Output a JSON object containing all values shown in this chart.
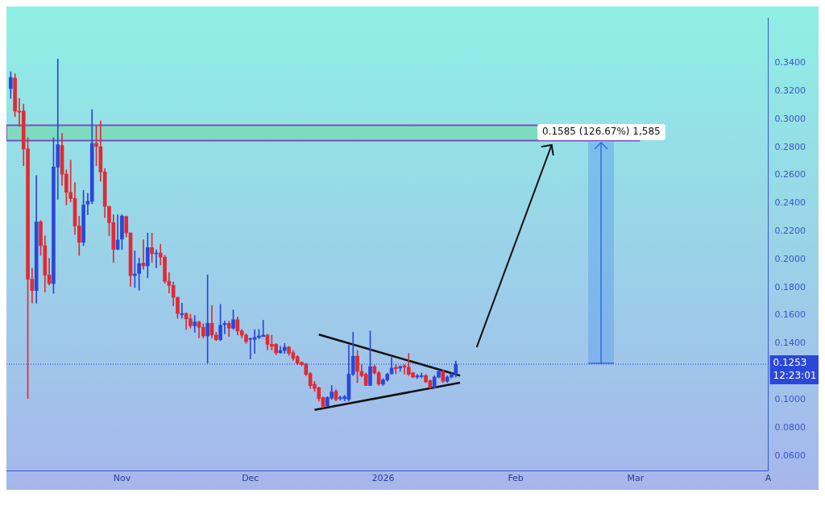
{
  "chart_data": {
    "type": "candlestick",
    "x": [
      "2025-10-06",
      "2025-10-07",
      "2025-10-08",
      "2025-10-09",
      "2025-10-10",
      "2025-10-11",
      "2025-10-12",
      "2025-10-13",
      "2025-10-14",
      "2025-10-15",
      "2025-10-16",
      "2025-10-17",
      "2025-10-18",
      "2025-10-19",
      "2025-10-20",
      "2025-10-21",
      "2025-10-22",
      "2025-10-23",
      "2025-10-24",
      "2025-10-25",
      "2025-10-26",
      "2025-10-27",
      "2025-10-28",
      "2025-10-29",
      "2025-10-30",
      "2025-10-31",
      "2025-11-01",
      "2025-11-02",
      "2025-11-03",
      "2025-11-04",
      "2025-11-05",
      "2025-11-06",
      "2025-11-07",
      "2025-11-08",
      "2025-11-09",
      "2025-11-10",
      "2025-11-11",
      "2025-11-12",
      "2025-11-13",
      "2025-11-14",
      "2025-11-15",
      "2025-11-16",
      "2025-11-17",
      "2025-11-18",
      "2025-11-19",
      "2025-11-20",
      "2025-11-21",
      "2025-11-22",
      "2025-11-23",
      "2025-11-24",
      "2025-11-25",
      "2025-11-26",
      "2025-11-27",
      "2025-11-28",
      "2025-11-29",
      "2025-11-30",
      "2025-12-01",
      "2025-12-02",
      "2025-12-03",
      "2025-12-04",
      "2025-12-05",
      "2025-12-06",
      "2025-12-07",
      "2025-12-08",
      "2025-12-09",
      "2025-12-10",
      "2025-12-11",
      "2025-12-12",
      "2025-12-13",
      "2025-12-14",
      "2025-12-15",
      "2025-12-16",
      "2025-12-17",
      "2025-12-18",
      "2025-12-19",
      "2025-12-20",
      "2025-12-21",
      "2025-12-22",
      "2025-12-23",
      "2025-12-24",
      "2025-12-25",
      "2025-12-26",
      "2025-12-27",
      "2025-12-28",
      "2025-12-29",
      "2025-12-30",
      "2025-12-31",
      "2026-01-01",
      "2026-01-02",
      "2026-01-03",
      "2026-01-04",
      "2026-01-05",
      "2026-01-06",
      "2026-01-07",
      "2026-01-08",
      "2026-01-09",
      "2026-01-10",
      "2026-01-11",
      "2026-01-12",
      "2026-01-13",
      "2026-01-14",
      "2026-01-15",
      "2026-01-16",
      "2026-01-17",
      "2026-01-18"
    ],
    "ohlc": [
      [
        0.3218,
        0.3338,
        0.3148,
        0.3298
      ],
      [
        0.3292,
        0.3324,
        0.3018,
        0.3058
      ],
      [
        0.3058,
        0.3148,
        0.2948,
        0.305
      ],
      [
        0.3058,
        0.3108,
        0.2668,
        0.2788
      ],
      [
        0.2788,
        0.2868,
        0.1008,
        0.1858
      ],
      [
        0.1858,
        0.1938,
        0.1688,
        0.1778
      ],
      [
        0.1778,
        0.2598,
        0.1688,
        0.2268
      ],
      [
        0.2268,
        0.2278,
        0.2028,
        0.2098
      ],
      [
        0.2098,
        0.2168,
        0.1768,
        0.1888
      ],
      [
        0.1888,
        0.2008,
        0.1818,
        0.1828
      ],
      [
        0.1828,
        0.2868,
        0.1758,
        0.2658
      ],
      [
        0.2658,
        0.3428,
        0.2428,
        0.2818
      ],
      [
        0.2812,
        0.2898,
        0.2528,
        0.2608
      ],
      [
        0.2608,
        0.2638,
        0.2388,
        0.2478
      ],
      [
        0.2478,
        0.2708,
        0.2408,
        0.2434
      ],
      [
        0.2434,
        0.2548,
        0.2178,
        0.2238
      ],
      [
        0.2238,
        0.2308,
        0.2028,
        0.2122
      ],
      [
        0.2122,
        0.2492,
        0.2098,
        0.2388
      ],
      [
        0.2394,
        0.2472,
        0.2318,
        0.2414
      ],
      [
        0.2414,
        0.3068,
        0.2398,
        0.2828
      ],
      [
        0.2828,
        0.2958,
        0.2668,
        0.2804
      ],
      [
        0.2804,
        0.2988,
        0.2558,
        0.2624
      ],
      [
        0.2624,
        0.2648,
        0.2298,
        0.2378
      ],
      [
        0.2378,
        0.2378,
        0.2168,
        0.2262
      ],
      [
        0.2262,
        0.2318,
        0.1978,
        0.2072
      ],
      [
        0.2072,
        0.2318,
        0.2068,
        0.2138
      ],
      [
        0.2145,
        0.2319,
        0.207,
        0.2309
      ],
      [
        0.2305,
        0.231,
        0.216,
        0.2189
      ],
      [
        0.2189,
        0.2189,
        0.1808,
        0.1884
      ],
      [
        0.1884,
        0.206,
        0.18,
        0.1896
      ],
      [
        0.19,
        0.201,
        0.178,
        0.197
      ],
      [
        0.1974,
        0.214,
        0.193,
        0.1954
      ],
      [
        0.1954,
        0.2188,
        0.1868,
        0.2084
      ],
      [
        0.2084,
        0.2188,
        0.198,
        0.204
      ],
      [
        0.204,
        0.2068,
        0.194,
        0.2045
      ],
      [
        0.2045,
        0.2108,
        0.196,
        0.2016
      ],
      [
        0.2016,
        0.203,
        0.183,
        0.1844
      ],
      [
        0.1844,
        0.1908,
        0.176,
        0.1814
      ],
      [
        0.1814,
        0.1838,
        0.1668,
        0.173
      ],
      [
        0.173,
        0.173,
        0.158,
        0.1614
      ],
      [
        0.1606,
        0.1688,
        0.158,
        0.1614
      ],
      [
        0.1614,
        0.162,
        0.15,
        0.1576
      ],
      [
        0.1576,
        0.1608,
        0.151,
        0.1526
      ],
      [
        0.1526,
        0.16,
        0.148,
        0.1554
      ],
      [
        0.1554,
        0.156,
        0.144,
        0.1516
      ],
      [
        0.1516,
        0.154,
        0.144,
        0.1454
      ],
      [
        0.1454,
        0.189,
        0.126,
        0.1544
      ],
      [
        0.1544,
        0.167,
        0.144,
        0.146
      ],
      [
        0.146,
        0.148,
        0.142,
        0.1427
      ],
      [
        0.1427,
        0.168,
        0.142,
        0.153
      ],
      [
        0.1534,
        0.156,
        0.147,
        0.1544
      ],
      [
        0.1544,
        0.156,
        0.145,
        0.151
      ],
      [
        0.151,
        0.164,
        0.15,
        0.157
      ],
      [
        0.157,
        0.159,
        0.146,
        0.149
      ],
      [
        0.149,
        0.15,
        0.144,
        0.146
      ],
      [
        0.146,
        0.147,
        0.14,
        0.1414
      ],
      [
        0.143,
        0.144,
        0.129,
        0.1436
      ],
      [
        0.143,
        0.15,
        0.133,
        0.1444
      ],
      [
        0.1444,
        0.15,
        0.1434,
        0.1454
      ],
      [
        0.145,
        0.1566,
        0.145,
        0.146
      ],
      [
        0.146,
        0.1466,
        0.1354,
        0.1394
      ],
      [
        0.1394,
        0.146,
        0.1354,
        0.138
      ],
      [
        0.1394,
        0.14,
        0.132,
        0.1334
      ],
      [
        0.1334,
        0.138,
        0.133,
        0.135
      ],
      [
        0.135,
        0.14,
        0.133,
        0.1374
      ],
      [
        0.1374,
        0.138,
        0.1315,
        0.133
      ],
      [
        0.1334,
        0.135,
        0.128,
        0.1294
      ],
      [
        0.1306,
        0.1314,
        0.125,
        0.126
      ],
      [
        0.1266,
        0.127,
        0.124,
        0.125
      ],
      [
        0.1254,
        0.126,
        0.117,
        0.118
      ],
      [
        0.1186,
        0.1194,
        0.108,
        0.11
      ],
      [
        0.111,
        0.113,
        0.106,
        0.108
      ],
      [
        0.1085,
        0.109,
        0.099,
        0.1007
      ],
      [
        0.1015,
        0.102,
        0.094,
        0.0951
      ],
      [
        0.0955,
        0.1021,
        0.0951,
        0.1015
      ],
      [
        0.1011,
        0.1101,
        0.1001,
        0.1055
      ],
      [
        0.1059,
        0.1071,
        0.0991,
        0.1001
      ],
      [
        0.1007,
        0.1027,
        0.0995,
        0.1015
      ],
      [
        0.1007,
        0.1031,
        0.0991,
        0.1021
      ],
      [
        0.1001,
        0.139,
        0.0991,
        0.1181
      ],
      [
        0.1181,
        0.148,
        0.117,
        0.131
      ],
      [
        0.131,
        0.135,
        0.1121,
        0.1201
      ],
      [
        0.1201,
        0.125,
        0.1161,
        0.1171
      ],
      [
        0.1181,
        0.119,
        0.11,
        0.1101
      ],
      [
        0.1101,
        0.149,
        0.11,
        0.1235
      ],
      [
        0.1235,
        0.1246,
        0.1181,
        0.1191
      ],
      [
        0.1191,
        0.1201,
        0.1101,
        0.1111
      ],
      [
        0.1111,
        0.115,
        0.11,
        0.1141
      ],
      [
        0.1141,
        0.119,
        0.1131,
        0.1181
      ],
      [
        0.1185,
        0.13,
        0.1181,
        0.1225
      ],
      [
        0.123,
        0.125,
        0.1185,
        0.1221
      ],
      [
        0.1225,
        0.1241,
        0.1201,
        0.1235
      ],
      [
        0.1241,
        0.125,
        0.1181,
        0.1231
      ],
      [
        0.1231,
        0.133,
        0.1171,
        0.1181
      ],
      [
        0.1191,
        0.1195,
        0.1155,
        0.1161
      ],
      [
        0.1161,
        0.1181,
        0.115,
        0.1171
      ],
      [
        0.1165,
        0.119,
        0.1155,
        0.1171
      ],
      [
        0.1171,
        0.1181,
        0.1121,
        0.1127
      ],
      [
        0.1135,
        0.1141,
        0.1081,
        0.1087
      ],
      [
        0.1087,
        0.1171,
        0.1081,
        0.1161
      ],
      [
        0.1161,
        0.121,
        0.1155,
        0.1201
      ],
      [
        0.1201,
        0.1211,
        0.1121,
        0.1131
      ],
      [
        0.1131,
        0.1171,
        0.1121,
        0.1161
      ],
      [
        0.1161,
        0.1191,
        0.1155,
        0.1181
      ],
      [
        0.1181,
        0.1275,
        0.1161,
        0.1253
      ]
    ],
    "colors": [
      "#2b47d9",
      "#e12a32",
      "#e12a32",
      "#e12a32",
      "#e12a32",
      "#e12a32",
      "#2b47d9",
      "#e12a32",
      "#e12a32",
      "#e12a32",
      "#2b47d9",
      "#2b47d9",
      "#e12a32",
      "#e12a32",
      "#e12a32",
      "#e12a32",
      "#e12a32",
      "#2b47d9",
      "#2b47d9",
      "#2b47d9",
      "#e12a32",
      "#e12a32",
      "#e12a32",
      "#e12a32",
      "#e12a32",
      "#2b47d9",
      "#2b47d9",
      "#e12a32",
      "#e12a32",
      "#2b47d9",
      "#2b47d9",
      "#e12a32",
      "#2b47d9",
      "#e12a32",
      "#2b47d9",
      "#e12a32",
      "#e12a32",
      "#e12a32",
      "#e12a32",
      "#e12a32",
      "#2b47d9",
      "#e12a32",
      "#e12a32",
      "#2b47d9",
      "#e12a32",
      "#e12a32",
      "#2b47d9",
      "#e12a32",
      "#e12a32",
      "#2b47d9",
      "#2b47d9",
      "#e12a32",
      "#2b47d9",
      "#e12a32",
      "#e12a32",
      "#e12a32",
      "#2b47d9",
      "#2b47d9",
      "#2b47d9",
      "#2b47d9",
      "#e12a32",
      "#e12a32",
      "#e12a32",
      "#2b47d9",
      "#2b47d9",
      "#e12a32",
      "#e12a32",
      "#e12a32",
      "#e12a32",
      "#e12a32",
      "#e12a32",
      "#e12a32",
      "#e12a32",
      "#e12a32",
      "#2b47d9",
      "#2b47d9",
      "#e12a32",
      "#2b47d9",
      "#2b47d9",
      "#2b47d9",
      "#2b47d9",
      "#e12a32",
      "#e12a32",
      "#e12a32",
      "#2b47d9",
      "#e12a32",
      "#e12a32",
      "#2b47d9",
      "#2b47d9",
      "#2b47d9",
      "#e12a32",
      "#2b47d9",
      "#e12a32",
      "#e12a32",
      "#e12a32",
      "#2b47d9",
      "#2b47d9",
      "#e12a32",
      "#e12a32",
      "#2b47d9",
      "#2b47d9",
      "#e12a32",
      "#2b47d9",
      "#2b47d9",
      "#2b47d9"
    ],
    "series": [
      {
        "type": "line",
        "color": "#111111",
        "x": [
          "2025-12-17",
          "2026-01-19"
        ],
        "values": [
          0.1464,
          0.1171
        ]
      },
      {
        "type": "line",
        "color": "#111111",
        "x": [
          "2025-12-16",
          "2026-01-19"
        ],
        "values": [
          0.0927,
          0.1121
        ]
      }
    ],
    "xlim": [
      "2025-10-05",
      "2026-04-01"
    ],
    "xticks": [
      {
        "value": "2025-11-01",
        "label": "Nov"
      },
      {
        "value": "2025-12-01",
        "label": "Dec"
      },
      {
        "value": "2026-01-01",
        "label": "2026"
      },
      {
        "value": "2026-02-01",
        "label": "Feb"
      },
      {
        "value": "2026-03-01",
        "label": "Mar"
      },
      {
        "value": "2026-04-01",
        "label": "A"
      }
    ],
    "ylim": [
      0.049,
      0.372
    ],
    "yticks": [
      {
        "value": 0.06,
        "label": "0.0600"
      },
      {
        "value": 0.08,
        "label": "0.0800"
      },
      {
        "value": 0.1,
        "label": "0.1000"
      },
      {
        "value": 0.14,
        "label": "0.1400"
      },
      {
        "value": 0.16,
        "label": "0.1600"
      },
      {
        "value": 0.18,
        "label": "0.1800"
      },
      {
        "value": 0.2,
        "label": "0.2000"
      },
      {
        "value": 0.22,
        "label": "0.2200"
      },
      {
        "value": 0.24,
        "label": "0.2400"
      },
      {
        "value": 0.26,
        "label": "0.2600"
      },
      {
        "value": 0.28,
        "label": "0.2800"
      },
      {
        "value": 0.3,
        "label": "0.3000"
      },
      {
        "value": 0.32,
        "label": "0.3200"
      },
      {
        "value": 0.34,
        "label": "0.3400"
      }
    ],
    "bands": [
      {
        "axis": "y",
        "from": 0.2848,
        "to": 0.2957,
        "color": "#7ddcc0"
      }
    ],
    "ref_lines": [
      {
        "axis": "y",
        "value": 0.1253,
        "label": "0.1253",
        "color": "#2b47d9",
        "line_style": "dotted"
      }
    ],
    "annotations": [
      "12:23:01",
      {
        "text": "0.1585 (126.67%) 1,585",
        "x": "2026-02-21",
        "y": 0.2838
      }
    ],
    "legend": false
  }
}
